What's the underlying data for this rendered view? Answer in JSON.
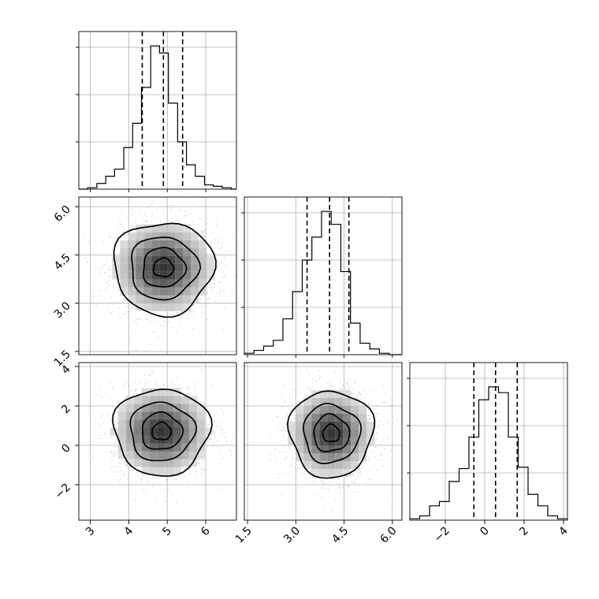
{
  "chart_data": {
    "type": "corner",
    "parameters": [
      {
        "index": 0,
        "median": 4.9,
        "q16": 4.35,
        "q84": 5.4,
        "xlim": [
          2.7,
          6.8
        ],
        "ticks": [
          {
            "v": 3,
            "t": "3"
          },
          {
            "v": 4,
            "t": "4"
          },
          {
            "v": 5,
            "t": "5"
          },
          {
            "v": 6,
            "t": "6"
          }
        ]
      },
      {
        "index": 1,
        "median": 4.05,
        "q16": 3.35,
        "q84": 4.65,
        "xlim": [
          1.4,
          6.3
        ],
        "ticks": [
          {
            "v": 1.5,
            "t": "1.5"
          },
          {
            "v": 3.0,
            "t": "3.0"
          },
          {
            "v": 4.5,
            "t": "4.5"
          },
          {
            "v": 6.0,
            "t": "6.0"
          }
        ]
      },
      {
        "index": 2,
        "median": 0.55,
        "q16": -0.55,
        "q84": 1.65,
        "xlim": [
          -3.8,
          4.2
        ],
        "ticks": [
          {
            "v": -2,
            "t": "−2"
          },
          {
            "v": 0,
            "t": "0"
          },
          {
            "v": 2,
            "t": "2"
          },
          {
            "v": 4,
            "t": "4"
          }
        ]
      }
    ],
    "histograms": [
      {
        "param": 0,
        "ymax": 1.1,
        "ytick_fracs": [
          0.3,
          0.6,
          0.9
        ],
        "bins": [
          2.7,
          2.93,
          3.17,
          3.4,
          3.63,
          3.87,
          4.1,
          4.33,
          4.57,
          4.8,
          5.03,
          5.27,
          5.5,
          5.73,
          5.97,
          6.2,
          6.43,
          6.67,
          6.8
        ],
        "heights": [
          0.0,
          0.01,
          0.04,
          0.09,
          0.14,
          0.29,
          0.46,
          0.71,
          1.0,
          0.95,
          0.6,
          0.33,
          0.17,
          0.09,
          0.03,
          0.02,
          0.01,
          0.0
        ]
      },
      {
        "param": 1,
        "ymax": 1.1,
        "ytick_fracs": [
          0.3,
          0.6,
          0.9
        ],
        "bins": [
          1.4,
          1.7,
          2.0,
          2.3,
          2.6,
          2.9,
          3.2,
          3.5,
          3.8,
          4.1,
          4.4,
          4.7,
          5.0,
          5.3,
          5.6,
          5.9,
          6.3
        ],
        "heights": [
          0.01,
          0.03,
          0.06,
          0.1,
          0.25,
          0.44,
          0.66,
          0.82,
          1.0,
          0.91,
          0.58,
          0.22,
          0.08,
          0.04,
          0.01,
          0.0
        ]
      },
      {
        "param": 2,
        "ymax": 1.1,
        "ytick_fracs": [
          0.3,
          0.6,
          0.9
        ],
        "bins": [
          -3.8,
          -3.3,
          -2.8,
          -2.3,
          -1.8,
          -1.3,
          -0.8,
          -0.3,
          0.2,
          0.7,
          1.2,
          1.7,
          2.2,
          2.7,
          3.2,
          3.7,
          4.2
        ],
        "heights": [
          0.01,
          0.03,
          0.1,
          0.13,
          0.27,
          0.36,
          0.58,
          0.84,
          0.93,
          0.89,
          0.58,
          0.37,
          0.18,
          0.1,
          0.03,
          0.01
        ]
      }
    ],
    "pairs": [
      {
        "x": 0,
        "y": 1,
        "center": [
          4.9,
          4.1
        ],
        "sd": [
          0.65,
          0.72
        ],
        "contour_levels": [
          0.4,
          0.85,
          1.35,
          2.0
        ]
      },
      {
        "x": 0,
        "y": 2,
        "center": [
          4.85,
          0.7
        ],
        "sd": [
          0.62,
          1.1
        ],
        "contour_levels": [
          0.4,
          0.85,
          1.35,
          2.0
        ]
      },
      {
        "x": 1,
        "y": 2,
        "center": [
          4.1,
          0.6
        ],
        "sd": [
          0.65,
          1.1
        ],
        "contour_levels": [
          0.4,
          0.85,
          1.35,
          2.0
        ]
      }
    ],
    "y_tick_labels": {
      "row1": [
        {
          "v": 1.5,
          "t": "1.5"
        },
        {
          "v": 3.0,
          "t": "3.0"
        },
        {
          "v": 4.5,
          "t": "4.5"
        },
        {
          "v": 6.0,
          "t": "6.0"
        }
      ],
      "row2": [
        {
          "v": -2,
          "t": "−2"
        },
        {
          "v": 0,
          "t": "0"
        },
        {
          "v": 2,
          "t": "2"
        },
        {
          "v": 4,
          "t": "4"
        }
      ]
    },
    "grid": true
  }
}
